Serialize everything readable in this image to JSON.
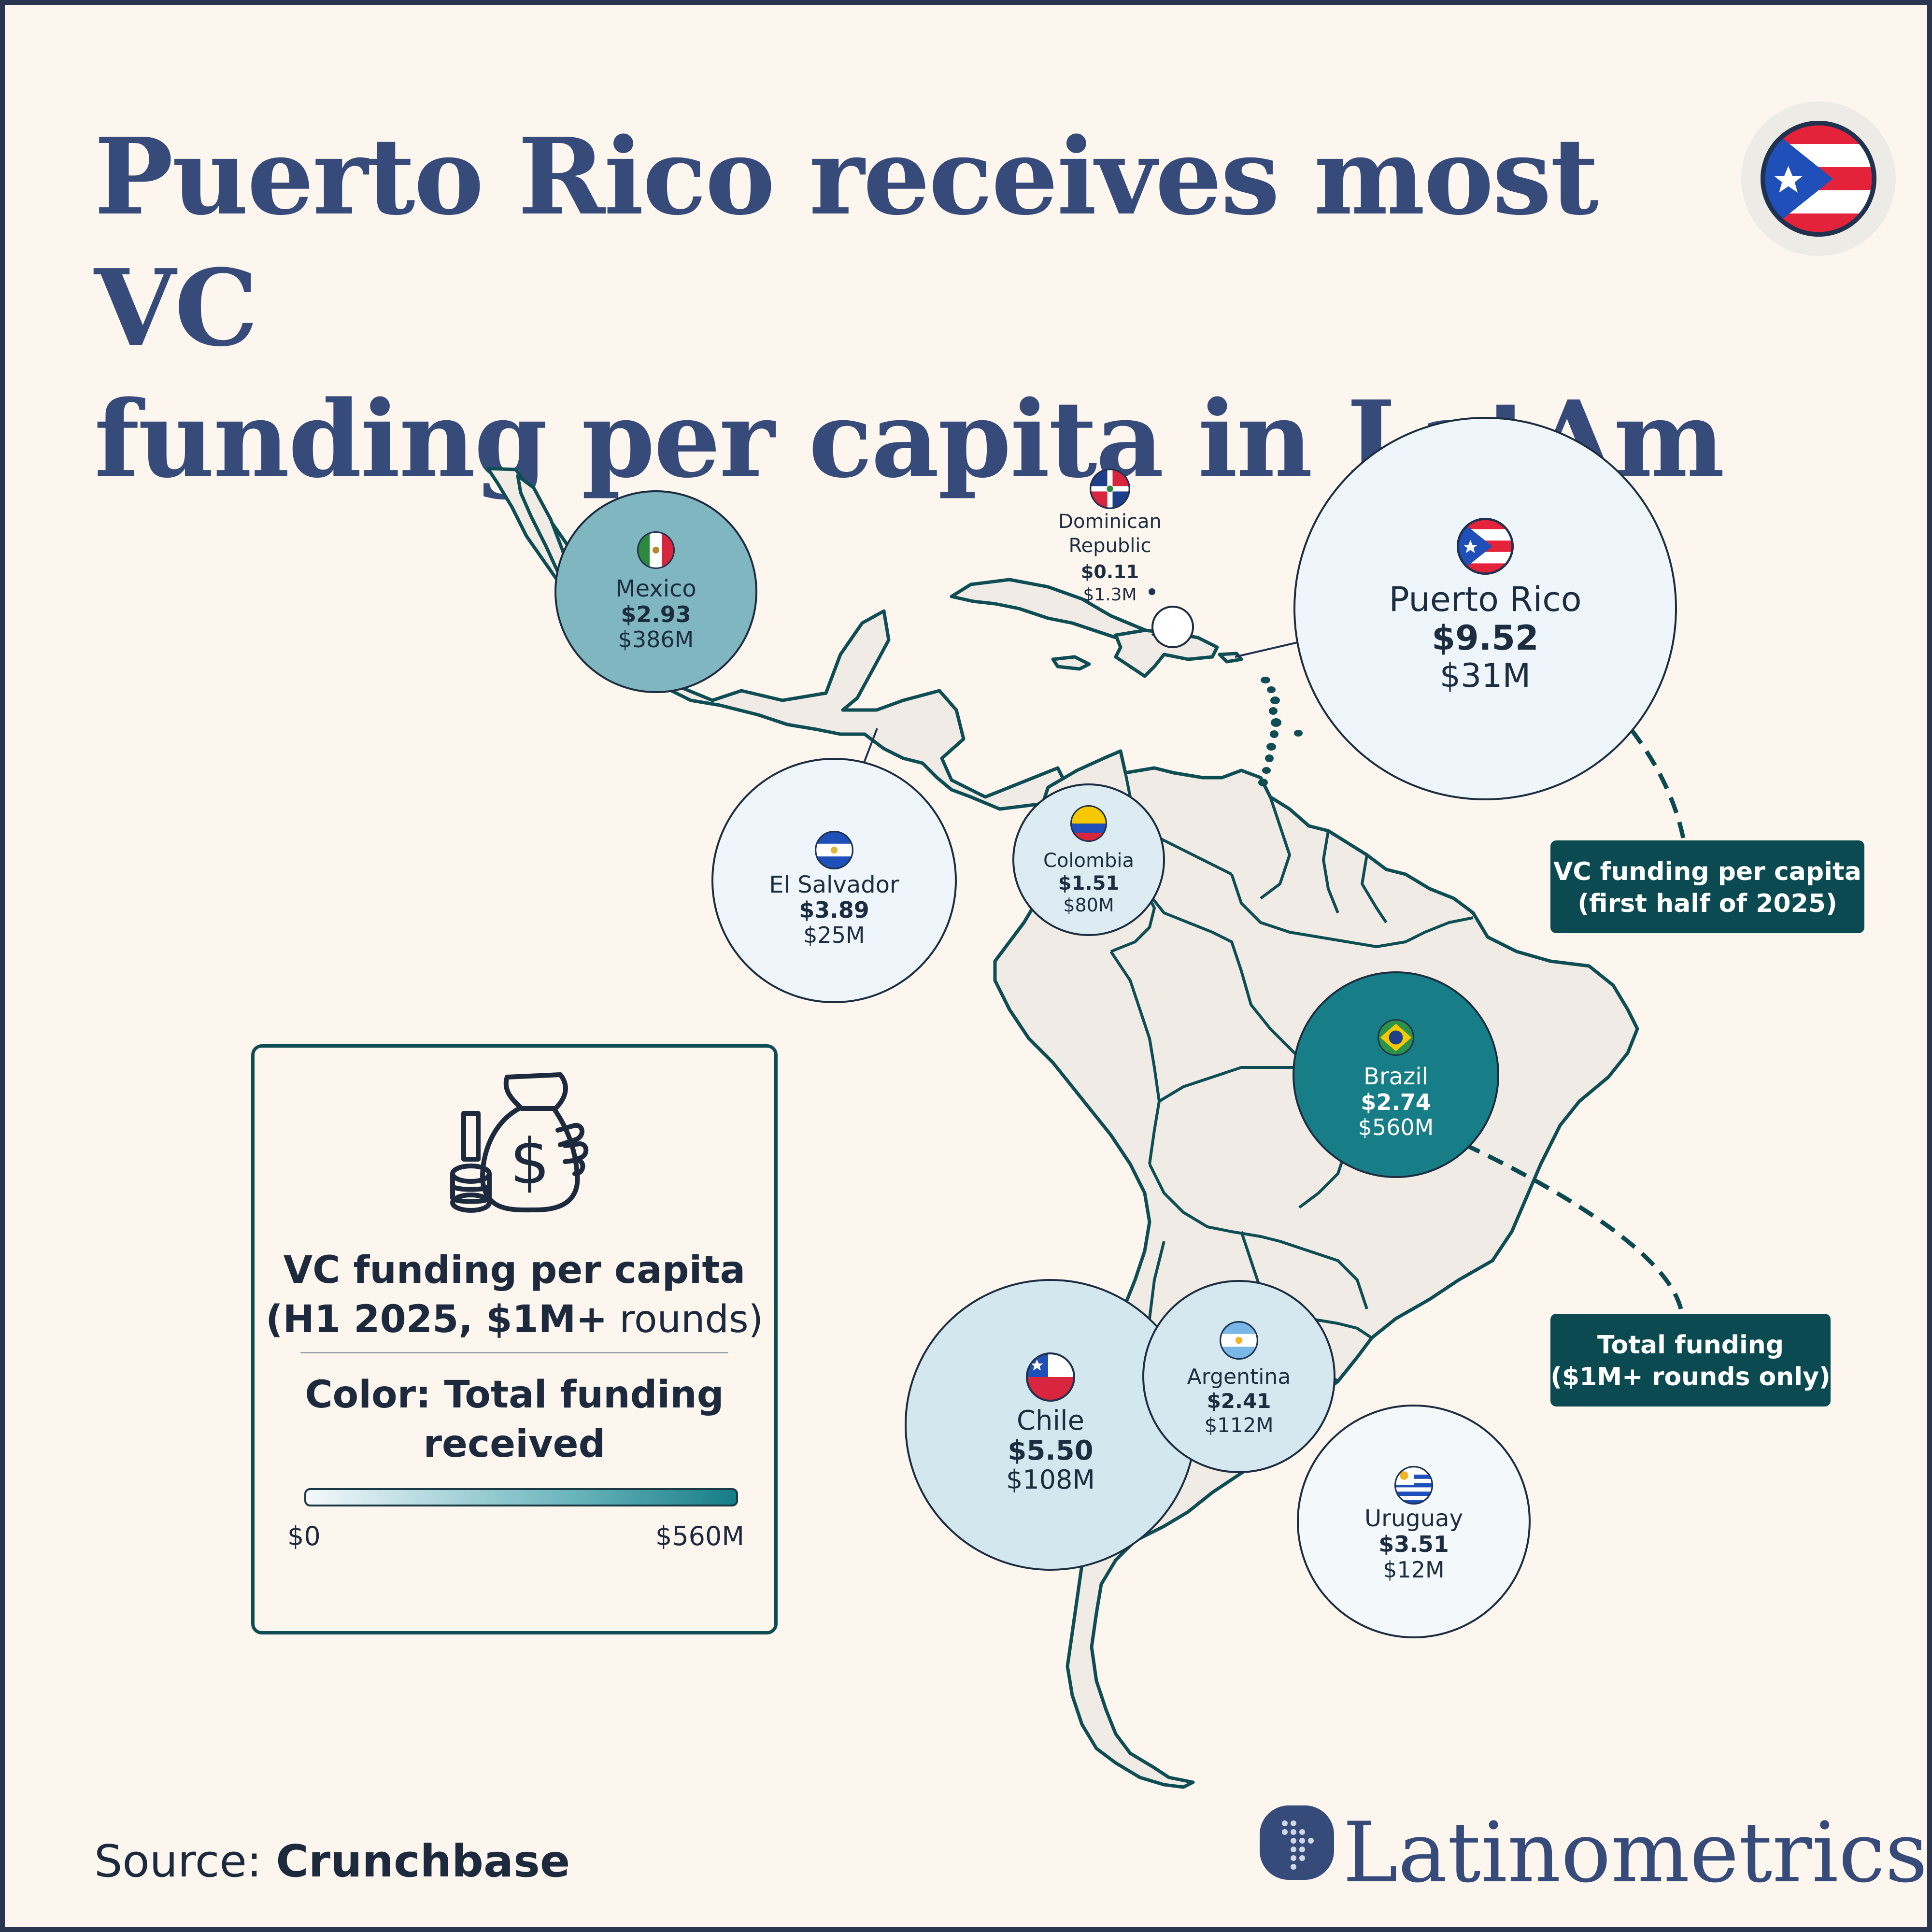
{
  "title": {
    "line1": "Puerto Rico receives most VC",
    "line2": "funding per capita in LatAm"
  },
  "colors": {
    "title": "#364b7a",
    "land": "#f0ece5",
    "border": "#0f4d54",
    "scale_min": "#f4f9fc",
    "scale_max": "#157d86"
  },
  "map": {
    "country_bubbles": [
      {
        "id": "puerto-rico",
        "name": "Puerto Rico",
        "per_capita": "$9.52",
        "total": "$31M",
        "per_capita_value": 9.52,
        "total_value_m": 31,
        "flag": "puerto-rico-flag-icon"
      },
      {
        "id": "chile",
        "name": "Chile",
        "per_capita": "$5.50",
        "total": "$108M",
        "per_capita_value": 5.5,
        "total_value_m": 108,
        "flag": "chile-flag-icon"
      },
      {
        "id": "el-salvador",
        "name": "El Salvador",
        "per_capita": "$3.89",
        "total": "$25M",
        "per_capita_value": 3.89,
        "total_value_m": 25,
        "flag": "el-salvador-flag-icon"
      },
      {
        "id": "uruguay",
        "name": "Uruguay",
        "per_capita": "$3.51",
        "total": "$12M",
        "per_capita_value": 3.51,
        "total_value_m": 12,
        "flag": "uruguay-flag-icon"
      },
      {
        "id": "mexico",
        "name": "Mexico",
        "per_capita": "$2.93",
        "total": "$386M",
        "per_capita_value": 2.93,
        "total_value_m": 386,
        "flag": "mexico-flag-icon"
      },
      {
        "id": "brazil",
        "name": "Brazil",
        "per_capita": "$2.74",
        "total": "$560M",
        "per_capita_value": 2.74,
        "total_value_m": 560,
        "flag": "brazil-flag-icon"
      },
      {
        "id": "argentina",
        "name": "Argentina",
        "per_capita": "$2.41",
        "total": "$112M",
        "per_capita_value": 2.41,
        "total_value_m": 112,
        "flag": "argentina-flag-icon"
      },
      {
        "id": "colombia",
        "name": "Colombia",
        "per_capita": "$1.51",
        "total": "$80M",
        "per_capita_value": 1.51,
        "total_value_m": 80,
        "flag": "colombia-flag-icon"
      }
    ],
    "dominican_republic": {
      "name_line1": "Dominican",
      "name_line2": "Republic",
      "per_capita": "$0.11",
      "total": "$1.3M",
      "per_capita_value": 0.11,
      "total_value_m": 1.3,
      "flag": "dominican-republic-flag-icon"
    }
  },
  "legend": {
    "icon": "money-bag-icon",
    "title_bold": "VC funding per capita",
    "subtitle_open": "(H1 2025, ",
    "subtitle_bold": "$1M+",
    "subtitle_close": " rounds)",
    "color_line1": "Color: Total funding",
    "color_line2": "received",
    "scale_min": "$0",
    "scale_max": "$560M"
  },
  "callouts": {
    "per_capita_line1": "VC funding per capita",
    "per_capita_line2": "(first half of 2025)",
    "total_line1": "Total funding",
    "total_line2": "($1M+ rounds only)"
  },
  "footer": {
    "source_label": "Source: ",
    "source_name": "Crunchbase",
    "brand": "Latinometrics"
  }
}
